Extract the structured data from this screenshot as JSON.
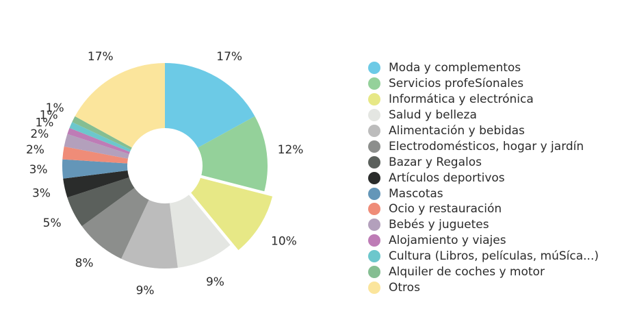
{
  "chart_data": {
    "type": "pie",
    "donut": true,
    "legend_position": "right",
    "categories": [
      "Moda y complementos",
      "Servicios profeSíonales",
      "Informática y electrónica",
      "Salud y belleza",
      "Alimentación y bebidas",
      "Electrodomésticos, hogar y jardín",
      "Bazar y Regalos",
      "Artículos deportivos",
      "Mascotas",
      "Ocio y restauración",
      "Bebés y juguetes",
      "Alojamiento y viajes",
      "Cultura (Libros, películas, múSíca...)",
      "Alquiler de coches y motor",
      "Otros"
    ],
    "values": [
      17,
      12,
      10,
      9,
      9,
      8,
      5,
      3,
      3,
      2,
      2,
      1,
      1,
      1,
      17
    ],
    "value_labels": [
      "17%",
      "12%",
      "10%",
      "9%",
      "9%",
      "8%",
      "5%",
      "3%",
      "3%",
      "2%",
      "2%",
      "1%",
      "1%",
      "1%",
      "17%"
    ],
    "colors": [
      "#6ccae6",
      "#94d19a",
      "#e7e886",
      "#e4e6e2",
      "#bcbcbc",
      "#8c8e8c",
      "#5b605c",
      "#2a2c2b",
      "#6496b8",
      "#ef8c78",
      "#b3a0bc",
      "#be7cb6",
      "#6cc7cc",
      "#85be92",
      "#fbe59c"
    ]
  }
}
